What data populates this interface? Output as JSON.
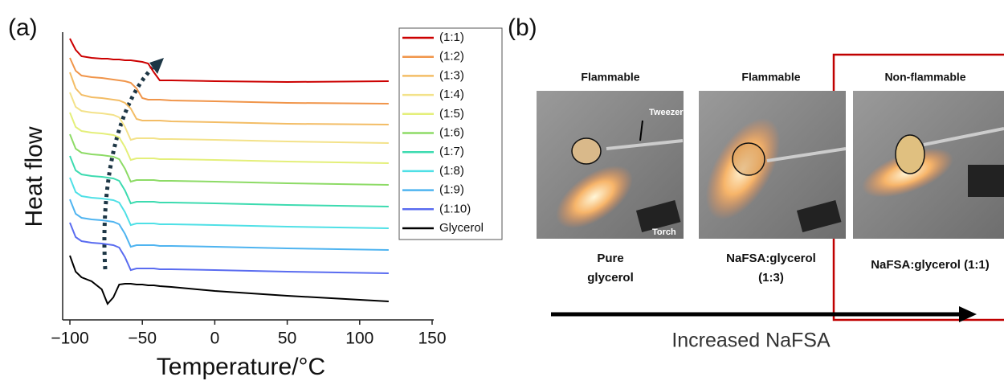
{
  "panel_labels": [
    "(a)",
    "(b)"
  ],
  "chart_data": {
    "type": "line",
    "xlabel": "Temperature/°C",
    "ylabel": "Heat flow",
    "x": [
      -100,
      -96,
      -92,
      -85,
      -78,
      -74,
      -70,
      -66,
      -62,
      -58,
      -54,
      -50,
      -46,
      -42,
      -38,
      -30,
      0,
      50,
      120
    ],
    "xlim": [
      -105,
      150
    ],
    "xticks": [
      {
        "value": -100,
        "label": "−100"
      },
      {
        "value": -50,
        "label": "−50"
      },
      0,
      50,
      100,
      150
    ],
    "ylim": [
      0,
      18
    ],
    "legend": "right",
    "series": [
      {
        "name": "(1:1)",
        "color": "#cc0000",
        "values": [
          17.5,
          16.8,
          16.4,
          16.3,
          16.25,
          16.25,
          16.2,
          16.2,
          16.15,
          16.15,
          16.1,
          16.05,
          15.95,
          15.4,
          14.9,
          14.9,
          14.85,
          14.8,
          14.85
        ]
      },
      {
        "name": "(1:2)",
        "color": "#f0954a",
        "values": [
          16.3,
          15.5,
          15.2,
          15.1,
          15.05,
          15.0,
          14.95,
          14.9,
          14.85,
          14.75,
          14.4,
          13.8,
          13.7,
          13.7,
          13.7,
          13.65,
          13.6,
          13.5,
          13.45
        ]
      },
      {
        "name": "(1:3)",
        "color": "#f3bd66",
        "values": [
          15.4,
          14.4,
          14.0,
          13.85,
          13.8,
          13.75,
          13.7,
          13.65,
          13.5,
          13.15,
          12.5,
          12.4,
          12.4,
          12.4,
          12.4,
          12.35,
          12.3,
          12.2,
          12.15
        ]
      },
      {
        "name": "(1:4)",
        "color": "#f3e28a",
        "values": [
          14.15,
          13.25,
          13.0,
          12.9,
          12.85,
          12.8,
          12.75,
          12.6,
          12.0,
          11.2,
          11.3,
          11.3,
          11.3,
          11.3,
          11.25,
          11.25,
          11.2,
          11.1,
          11.0
        ]
      },
      {
        "name": "(1:5)",
        "color": "#e4ef7a",
        "values": [
          12.9,
          12.0,
          11.75,
          11.65,
          11.6,
          11.55,
          11.5,
          11.35,
          10.75,
          9.95,
          10.05,
          10.05,
          10.05,
          10.05,
          10.0,
          10.0,
          9.95,
          9.85,
          9.75
        ]
      },
      {
        "name": "(1:6)",
        "color": "#8ddb66",
        "values": [
          11.55,
          10.65,
          10.4,
          10.3,
          10.25,
          10.2,
          10.15,
          10.0,
          9.4,
          8.6,
          8.7,
          8.7,
          8.7,
          8.7,
          8.65,
          8.65,
          8.6,
          8.5,
          8.4
        ]
      },
      {
        "name": "(1:7)",
        "color": "#3ddbb0",
        "values": [
          10.2,
          9.3,
          9.05,
          8.95,
          8.9,
          8.85,
          8.8,
          8.65,
          8.05,
          7.25,
          7.35,
          7.35,
          7.35,
          7.35,
          7.3,
          7.3,
          7.25,
          7.15,
          7.05
        ]
      },
      {
        "name": "(1:8)",
        "color": "#4fe0e6",
        "values": [
          8.85,
          7.95,
          7.7,
          7.6,
          7.55,
          7.5,
          7.45,
          7.3,
          6.7,
          5.9,
          6.0,
          6.0,
          6.0,
          6.0,
          5.95,
          5.95,
          5.9,
          5.8,
          5.7
        ]
      },
      {
        "name": "(1:9)",
        "color": "#4fb4f0",
        "values": [
          7.5,
          6.6,
          6.35,
          6.25,
          6.2,
          6.15,
          6.1,
          5.95,
          5.35,
          4.55,
          4.65,
          4.65,
          4.65,
          4.65,
          4.6,
          4.6,
          4.55,
          4.45,
          4.35
        ]
      },
      {
        "name": "(1:10)",
        "color": "#5a6cf0",
        "values": [
          6.05,
          5.15,
          4.9,
          4.8,
          4.75,
          4.7,
          4.65,
          4.5,
          3.9,
          3.1,
          3.2,
          3.2,
          3.2,
          3.2,
          3.15,
          3.15,
          3.1,
          3.0,
          2.9
        ]
      },
      {
        "name": "Glycerol",
        "color": "#000000",
        "values": [
          4.0,
          3.0,
          2.65,
          2.4,
          1.9,
          1.0,
          1.4,
          2.2,
          2.25,
          2.25,
          2.2,
          2.2,
          2.15,
          2.15,
          2.1,
          2.05,
          1.8,
          1.5,
          1.15
        ]
      }
    ]
  },
  "photo_panel": {
    "photos": [
      {
        "heading": "Flammable",
        "caption": [
          "Pure",
          "glycerol"
        ],
        "annotations": [
          "Tweezers",
          "Torch"
        ]
      },
      {
        "heading": "Flammable",
        "caption": [
          "NaFSA:glycerol",
          "(1:3)"
        ]
      },
      {
        "heading": "Non-flammable",
        "caption": [
          "NaFSA:glycerol (1:1)"
        ]
      }
    ],
    "arrow_label": "Increased NaFSA"
  }
}
